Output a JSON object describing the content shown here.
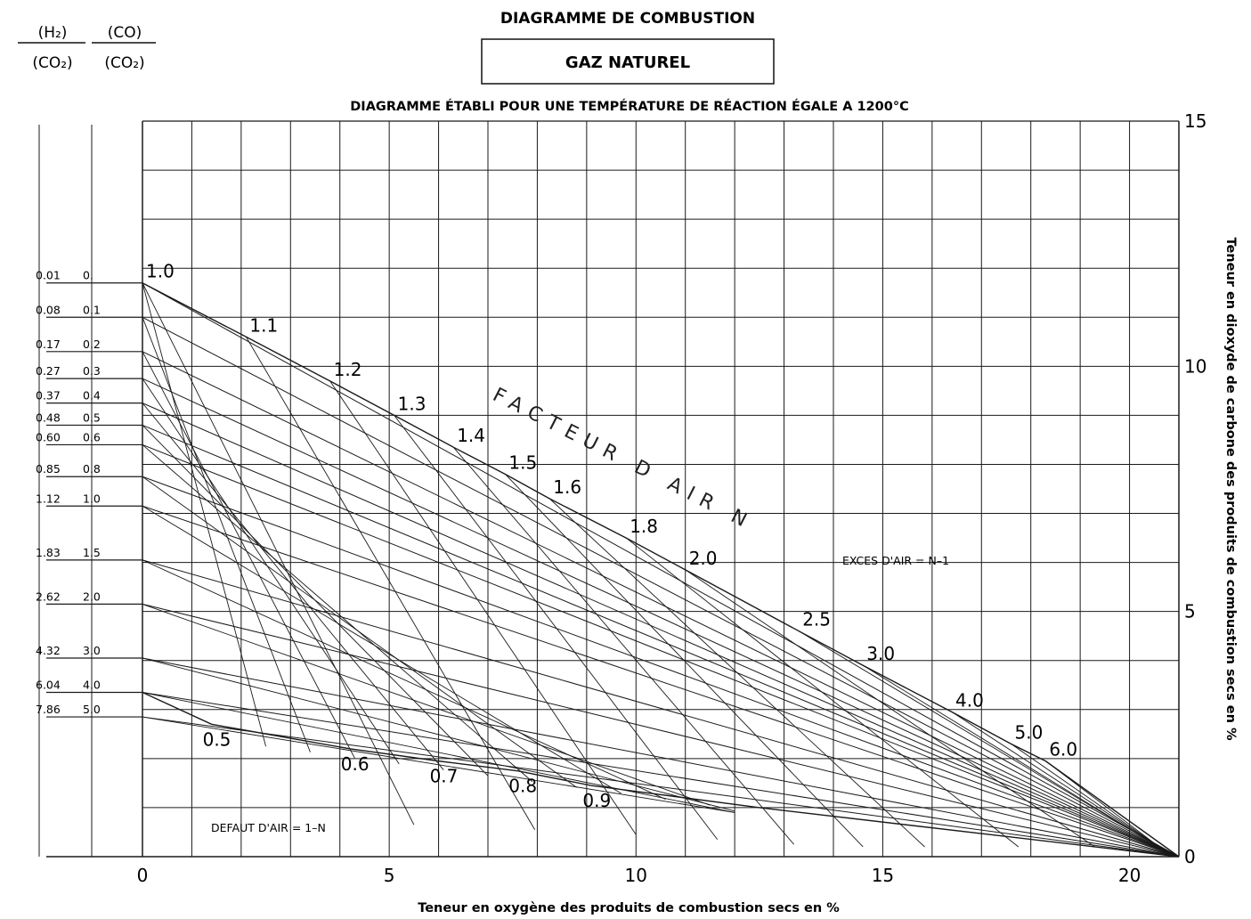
{
  "chart_data": {
    "type": "line",
    "title": "DIAGRAMME DE COMBUSTION",
    "subtitle_box": "GAZ NATUREL",
    "note": "DIAGRAMME ÉTABLI POUR UNE TEMPÉRATURE DE RÉACTION ÉGALE A 1200°C",
    "xlabel": "Teneur en oxygène des produits de combustion secs en %",
    "ylabel": "Teneur en dioxyde de carbone des produits de combustion secs en %",
    "xlim": [
      0,
      21
    ],
    "ylim": [
      0,
      15
    ],
    "grid": true,
    "x_ticks": [
      "0",
      "5",
      "10",
      "15",
      "20"
    ],
    "y_ticks": [
      "0",
      "5",
      "10",
      "15"
    ],
    "ratio_headers": {
      "h2": "(H₂)",
      "h2_den": "(CO₂)",
      "co": "(CO)",
      "co_den": "(CO₂)"
    },
    "ratio_rows": [
      {
        "h2co2": "0.01",
        "coco2": "0.",
        "co2_at_zero_o2": 11.7
      },
      {
        "h2co2": "0.08",
        "coco2": "0.1",
        "co2_at_zero_o2": 11.0
      },
      {
        "h2co2": "0.17",
        "coco2": "0.2",
        "co2_at_zero_o2": 10.3
      },
      {
        "h2co2": "0.27",
        "coco2": "0.3",
        "co2_at_zero_o2": 9.75
      },
      {
        "h2co2": "0.37",
        "coco2": "0.4",
        "co2_at_zero_o2": 9.25
      },
      {
        "h2co2": "0.48",
        "coco2": "0.5",
        "co2_at_zero_o2": 8.8
      },
      {
        "h2co2": "0.60",
        "coco2": "0.6",
        "co2_at_zero_o2": 8.4
      },
      {
        "h2co2": "0.85",
        "coco2": "0.8",
        "co2_at_zero_o2": 7.75
      },
      {
        "h2co2": "1.12",
        "coco2": "1.0",
        "co2_at_zero_o2": 7.15
      },
      {
        "h2co2": "1.83",
        "coco2": "1.5",
        "co2_at_zero_o2": 6.05
      },
      {
        "h2co2": "2.62",
        "coco2": "2.0",
        "co2_at_zero_o2": 5.15
      },
      {
        "h2co2": "4.32",
        "coco2": "3.0",
        "co2_at_zero_o2": 4.05
      },
      {
        "h2co2": "6.04",
        "coco2": "4.0",
        "co2_at_zero_o2": 3.35
      },
      {
        "h2co2": "7.86",
        "coco2": "5.0",
        "co2_at_zero_o2": 2.85
      }
    ],
    "air_factor_label": "FACTEUR D AIR N",
    "excess_label": "EXCES D'AIR = N–1",
    "default_label": "DEFAUT D'AIR = 1–N",
    "excess_air_curve": [
      {
        "n": "1.0",
        "o2": 0.0,
        "co2": 11.7
      },
      {
        "n": "1.1",
        "o2": 2.1,
        "co2": 10.6
      },
      {
        "n": "1.2",
        "o2": 3.8,
        "co2": 9.7
      },
      {
        "n": "1.3",
        "o2": 5.1,
        "co2": 9.0
      },
      {
        "n": "1.4",
        "o2": 6.3,
        "co2": 8.35
      },
      {
        "n": "1.5",
        "o2": 7.35,
        "co2": 7.8
      },
      {
        "n": "1.6",
        "o2": 8.25,
        "co2": 7.3
      },
      {
        "n": "1.8",
        "o2": 9.8,
        "co2": 6.5
      },
      {
        "n": "2.0",
        "o2": 11.0,
        "co2": 5.85
      },
      {
        "n": "2.5",
        "o2": 13.3,
        "co2": 4.6
      },
      {
        "n": "3.0",
        "o2": 14.6,
        "co2": 3.9
      },
      {
        "n": "4.0",
        "o2": 16.4,
        "co2": 2.95
      },
      {
        "n": "5.0",
        "o2": 17.6,
        "co2": 2.3
      },
      {
        "n": "6.0",
        "o2": 18.3,
        "co2": 1.95
      },
      {
        "n": "",
        "o2": 21.0,
        "co2": 0.0
      }
    ],
    "air_defect_curve": [
      {
        "n": "",
        "o2": 0.0,
        "co2": 3.35
      },
      {
        "n": "0.5",
        "o2": 1.4,
        "co2": 2.7
      },
      {
        "n": "0.6",
        "o2": 4.2,
        "co2": 2.2
      },
      {
        "n": "0.7",
        "o2": 6.0,
        "co2": 1.95
      },
      {
        "n": "0.8",
        "o2": 7.6,
        "co2": 1.75
      },
      {
        "n": "0.9",
        "o2": 9.1,
        "co2": 1.45
      },
      {
        "n": "",
        "o2": 12.5,
        "co2": 1.0
      },
      {
        "n": "",
        "o2": 21.0,
        "co2": 0.0
      }
    ]
  }
}
